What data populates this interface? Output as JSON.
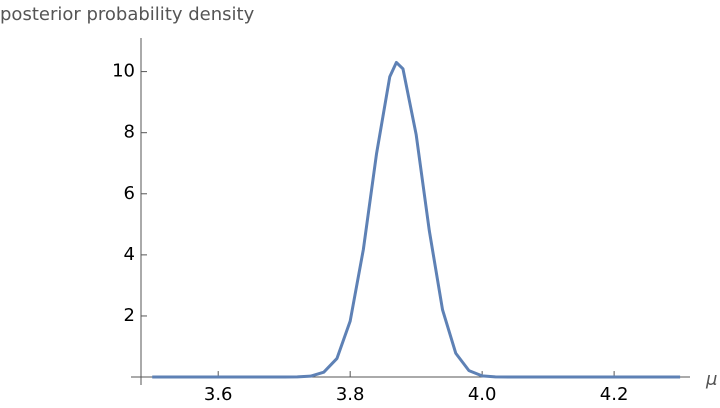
{
  "chart_data": {
    "type": "line",
    "ylabel": "posterior probability density",
    "xlabel": "μ",
    "x": [
      3.5,
      3.55,
      3.6,
      3.65,
      3.7,
      3.72,
      3.74,
      3.76,
      3.78,
      3.8,
      3.82,
      3.84,
      3.86,
      3.87,
      3.88,
      3.9,
      3.92,
      3.94,
      3.96,
      3.98,
      4.0,
      4.02,
      4.05,
      4.1,
      4.15,
      4.2,
      4.25,
      4.3
    ],
    "series": [
      {
        "color": "#5e81b5",
        "values": [
          0,
          0,
          0,
          0,
          0,
          0.005,
          0.03,
          0.16,
          0.61,
          1.83,
          4.18,
          7.32,
          9.83,
          10.3,
          10.09,
          7.94,
          4.78,
          2.2,
          0.78,
          0.21,
          0.04,
          0.007,
          0,
          0,
          0,
          0,
          0,
          0
        ]
      }
    ],
    "xlim": [
      3.483,
      4.315
    ],
    "ylim": [
      -0.26,
      11.1
    ],
    "xticks": [
      3.6,
      3.8,
      {
        "value": 4,
        "label": "4.0"
      },
      4.2
    ],
    "yticks": [
      2,
      4,
      6,
      8,
      10
    ]
  }
}
